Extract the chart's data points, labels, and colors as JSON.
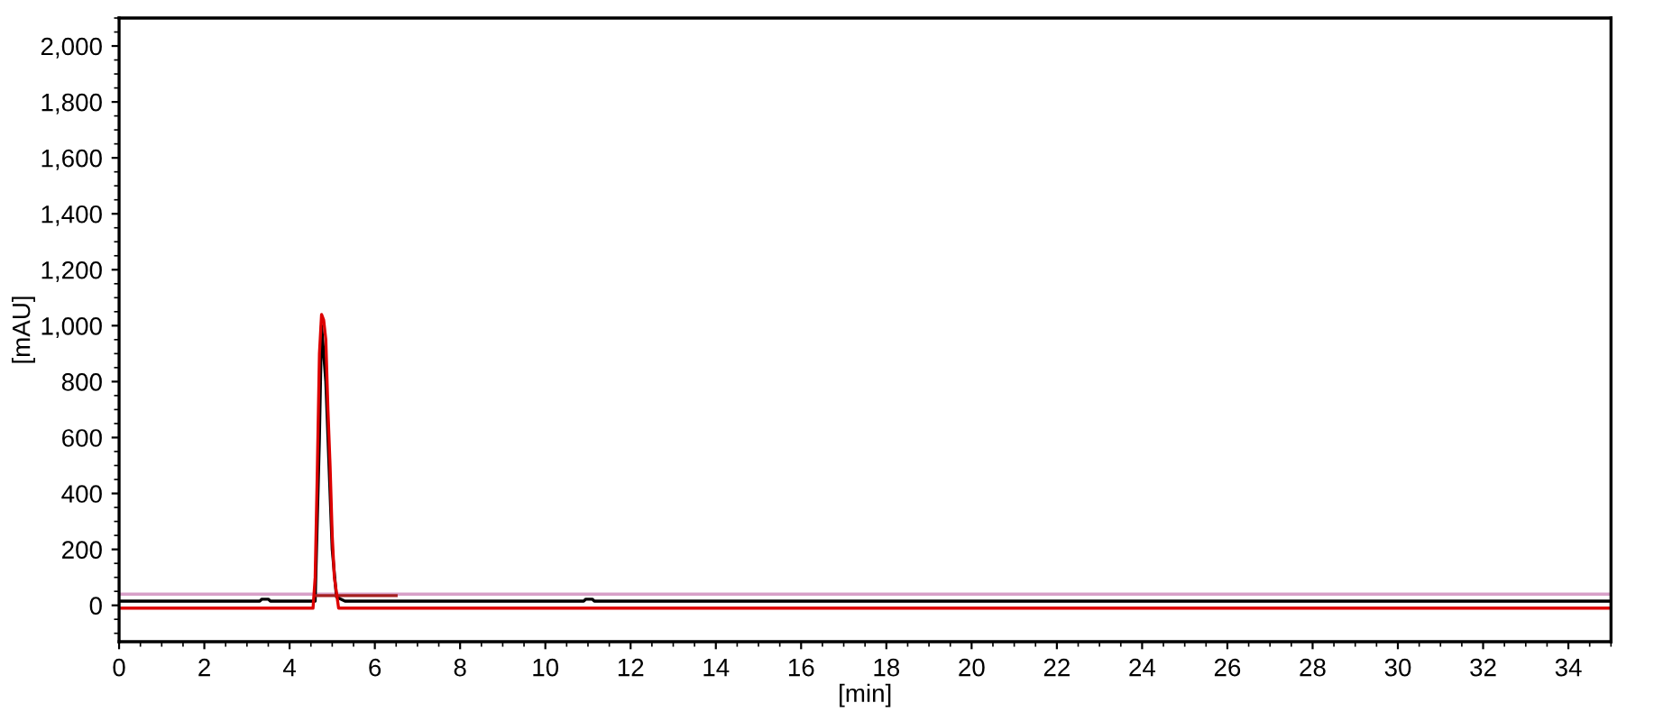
{
  "chart_data": {
    "type": "line",
    "xlabel": "[min]",
    "ylabel": "[mAU]",
    "xlim": [
      0,
      35
    ],
    "xticks": [
      0,
      2,
      4,
      6,
      8,
      10,
      12,
      14,
      16,
      18,
      20,
      22,
      24,
      26,
      28,
      30,
      32,
      34
    ],
    "ylim": [
      -130,
      2100
    ],
    "yticks": [
      {
        "value": 0,
        "label": "0"
      },
      {
        "value": 200,
        "label": "200"
      },
      {
        "value": 400,
        "label": "400"
      },
      {
        "value": 600,
        "label": "600"
      },
      {
        "value": 800,
        "label": "800"
      },
      {
        "value": 1000,
        "label": "1,000"
      },
      {
        "value": 1200,
        "label": "1,200"
      },
      {
        "value": 1400,
        "label": "1,400"
      },
      {
        "value": 1600,
        "label": "1,600"
      },
      {
        "value": 1800,
        "label": "1,800"
      },
      {
        "value": 2000,
        "label": "2,000"
      }
    ],
    "grid": false,
    "marker": "none",
    "line_style": "solid",
    "series": [
      {
        "color": "#d8a0c8",
        "x": [
          0,
          35
        ],
        "values": [
          40,
          40
        ]
      },
      {
        "color": "#000000",
        "x": [
          0,
          3.3,
          3.35,
          3.5,
          3.55,
          4.6,
          4.7,
          4.75,
          4.85,
          5.0,
          5.1,
          5.2,
          5.3,
          10.9,
          10.95,
          11.1,
          11.15,
          35
        ],
        "values": [
          15,
          15,
          22,
          22,
          15,
          15,
          600,
          1000,
          800,
          200,
          30,
          22,
          15,
          15,
          22,
          22,
          15,
          15
        ]
      },
      {
        "color": "#a52020",
        "x": [
          4.6,
          6.5
        ],
        "values": [
          35,
          35
        ]
      },
      {
        "color": "#dd0000",
        "x": [
          0,
          4.55,
          4.6,
          4.65,
          4.7,
          4.75,
          4.8,
          4.85,
          4.9,
          4.95,
          5.0,
          5.05,
          5.15,
          35
        ],
        "values": [
          -10,
          -10,
          100,
          480,
          900,
          1040,
          1020,
          950,
          700,
          500,
          250,
          100,
          -10,
          -10
        ]
      }
    ]
  }
}
